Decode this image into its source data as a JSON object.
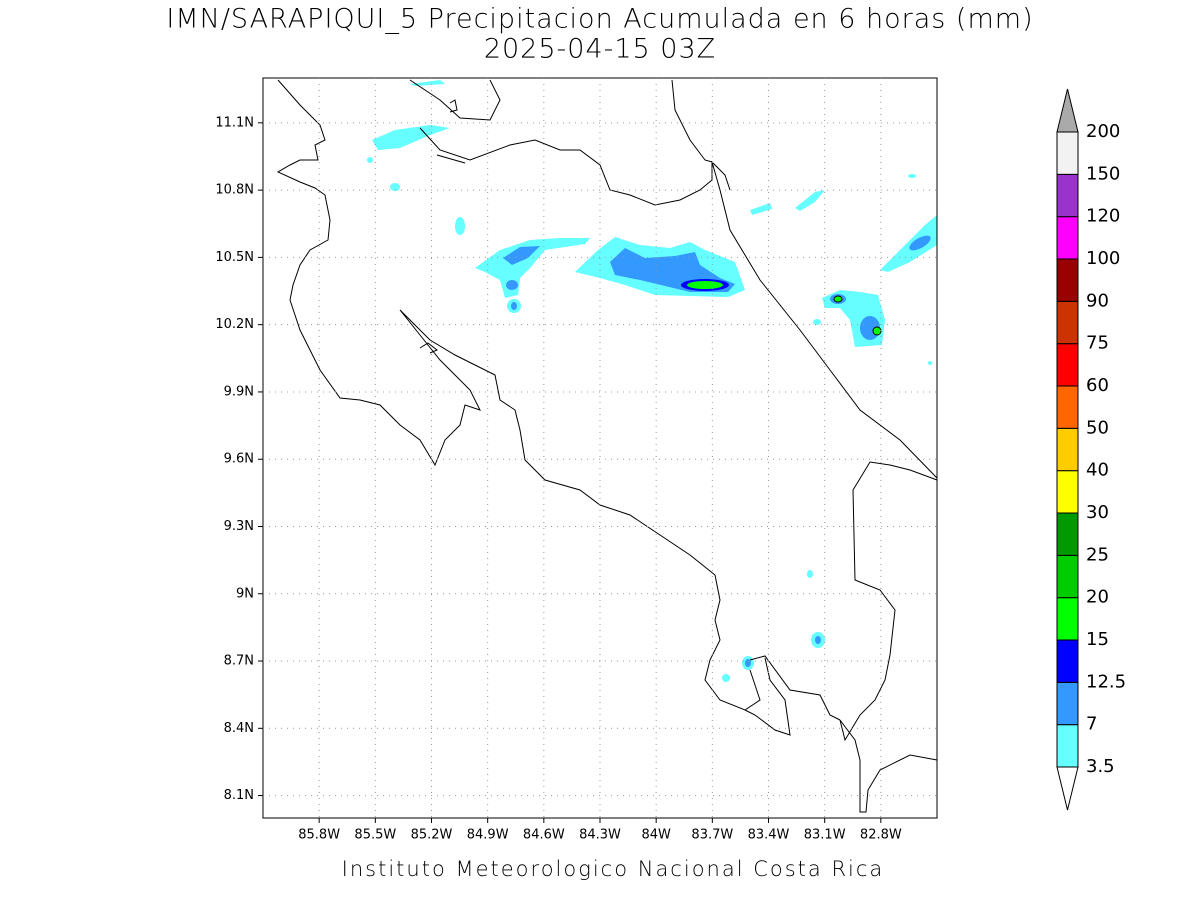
{
  "title": "IMN/SARAPIQUI_5 Precipitacion Acumulada en 6 horas (mm)",
  "subtitle": "2025-04-15 03Z",
  "map": {
    "xlim": [
      -86.1,
      -82.5
    ],
    "ylim": [
      8.0,
      11.3
    ],
    "grid": true,
    "xticks": [
      {
        "value": -85.8,
        "label": "85.8W"
      },
      {
        "value": -85.5,
        "label": "85.5W"
      },
      {
        "value": -85.2,
        "label": "85.2W"
      },
      {
        "value": -84.9,
        "label": "84.9W"
      },
      {
        "value": -84.6,
        "label": "84.6W"
      },
      {
        "value": -84.3,
        "label": "84.3W"
      },
      {
        "value": -84.0,
        "label": "84W"
      },
      {
        "value": -83.7,
        "label": "83.7W"
      },
      {
        "value": -83.4,
        "label": "83.4W"
      },
      {
        "value": -83.1,
        "label": "83.1W"
      },
      {
        "value": -82.8,
        "label": "82.8W"
      }
    ],
    "yticks": [
      {
        "value": 8.1,
        "label": "8.1N"
      },
      {
        "value": 8.4,
        "label": "8.4N"
      },
      {
        "value": 8.7,
        "label": "8.7N"
      },
      {
        "value": 9.0,
        "label": "9N"
      },
      {
        "value": 9.3,
        "label": "9.3N"
      },
      {
        "value": 9.6,
        "label": "9.6N"
      },
      {
        "value": 9.9,
        "label": "9.9N"
      },
      {
        "value": 10.2,
        "label": "10.2N"
      },
      {
        "value": 10.5,
        "label": "10.5N"
      },
      {
        "value": 10.8,
        "label": "10.8N"
      },
      {
        "value": 11.1,
        "label": "11.1N"
      }
    ]
  },
  "colorbar": {
    "levels": [
      3.5,
      7,
      12.5,
      15,
      20,
      25,
      30,
      40,
      50,
      60,
      75,
      90,
      100,
      120,
      150,
      200
    ],
    "colors": [
      "#ffffff",
      "#66ffff",
      "#3399ff",
      "#0000ff",
      "#00ff00",
      "#00cc00",
      "#009900",
      "#ffff00",
      "#ffcc00",
      "#ff6600",
      "#ff0000",
      "#cc3300",
      "#990000",
      "#ff00ff",
      "#9933cc",
      "#f2f2f2",
      "#aaaaaa"
    ]
  },
  "footer": "Instituto Meteorologico Nacional Costa Rica"
}
